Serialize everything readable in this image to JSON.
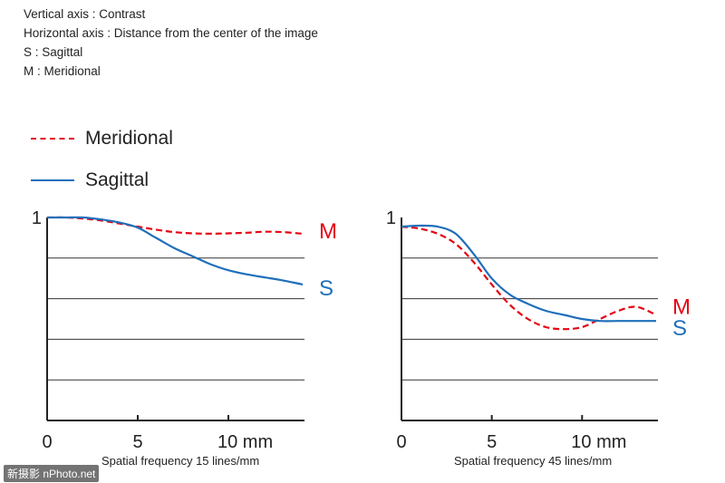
{
  "notes": [
    "Vertical axis : Contrast",
    "Horizontal axis : Distance from the center of the image",
    "S : Sagittal",
    "M : Meridional"
  ],
  "legend": {
    "meridional": "Meridional",
    "sagittal": "Sagittal"
  },
  "colors": {
    "meridional": "#e30613",
    "sagittal": "#1f6fba",
    "axis": "#222222",
    "grid": "#333333"
  },
  "watermark": "新摄影 nPhoto.net",
  "chart_data": [
    {
      "type": "line",
      "title": "",
      "caption": "Spatial frequency 15 lines/mm",
      "xlabel": "",
      "ylabel": "",
      "xlim": [
        0,
        14.2
      ],
      "ylim": [
        0,
        1
      ],
      "y_gridlines": [
        0.2,
        0.4,
        0.6,
        0.8
      ],
      "x_ticks": [
        {
          "value": 0,
          "label": "0"
        },
        {
          "value": 5,
          "label": "5"
        },
        {
          "value": 10,
          "label": "10 mm"
        }
      ],
      "y_ticks": [
        {
          "value": 1,
          "label": "1"
        }
      ],
      "series": [
        {
          "name": "M",
          "style": "dashed",
          "color_key": "meridional",
          "x": [
            0,
            1,
            2,
            3,
            4,
            5,
            6,
            7,
            8,
            9,
            10,
            11,
            12,
            13,
            14.1
          ],
          "y": [
            1.0,
            1.0,
            0.995,
            0.985,
            0.97,
            0.955,
            0.94,
            0.928,
            0.922,
            0.92,
            0.922,
            0.925,
            0.93,
            0.928,
            0.92
          ]
        },
        {
          "name": "S",
          "style": "solid",
          "color_key": "sagittal",
          "x": [
            0,
            1,
            2,
            3,
            4,
            5,
            6,
            7,
            8,
            9,
            10,
            11,
            12,
            13,
            14.1
          ],
          "y": [
            1.0,
            1.0,
            1.0,
            0.99,
            0.975,
            0.95,
            0.9,
            0.85,
            0.81,
            0.77,
            0.74,
            0.72,
            0.705,
            0.69,
            0.67
          ]
        }
      ]
    },
    {
      "type": "line",
      "title": "",
      "caption": "Spatial frequency 45 lines/mm",
      "xlabel": "",
      "ylabel": "",
      "xlim": [
        0,
        14.2
      ],
      "ylim": [
        0,
        1
      ],
      "y_gridlines": [
        0.2,
        0.4,
        0.6,
        0.8
      ],
      "x_ticks": [
        {
          "value": 0,
          "label": "0"
        },
        {
          "value": 5,
          "label": "5"
        },
        {
          "value": 10,
          "label": "10 mm"
        }
      ],
      "y_ticks": [
        {
          "value": 1,
          "label": "1"
        }
      ],
      "series": [
        {
          "name": "M",
          "style": "dashed",
          "color_key": "meridional",
          "x": [
            0,
            1,
            2,
            3,
            4,
            5,
            6,
            7,
            8,
            9,
            10,
            11,
            12,
            13,
            14.1
          ],
          "y": [
            0.955,
            0.945,
            0.92,
            0.87,
            0.78,
            0.67,
            0.57,
            0.5,
            0.46,
            0.45,
            0.46,
            0.5,
            0.54,
            0.56,
            0.52
          ]
        },
        {
          "name": "S",
          "style": "solid",
          "color_key": "sagittal",
          "x": [
            0,
            1,
            2,
            3,
            4,
            5,
            6,
            7,
            8,
            9,
            10,
            11,
            12,
            13,
            14.1
          ],
          "y": [
            0.955,
            0.96,
            0.955,
            0.92,
            0.82,
            0.7,
            0.62,
            0.575,
            0.54,
            0.52,
            0.5,
            0.49,
            0.49,
            0.49,
            0.49
          ]
        }
      ]
    }
  ]
}
